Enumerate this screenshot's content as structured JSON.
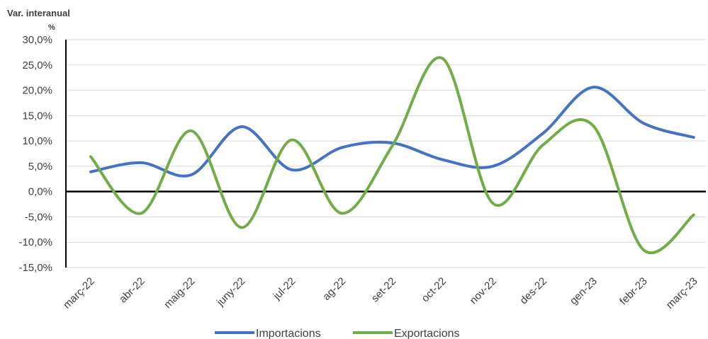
{
  "chart_data": {
    "type": "line",
    "ylabel": "Var. interanual",
    "yunit": "%",
    "categories": [
      "març-22",
      "abr-22",
      "maig-22",
      "juny-22",
      "jul-22",
      "ag-22",
      "set-22",
      "oct-22",
      "nov-22",
      "des-22",
      "gen-23",
      "febr-23",
      "març-23"
    ],
    "ylim": [
      -15,
      30
    ],
    "yticks": [
      -15,
      -10,
      -5,
      0,
      5,
      10,
      15,
      20,
      25,
      30
    ],
    "ytick_labels": [
      "-15,0%",
      "-10,0%",
      "-5,0%",
      "0,0%",
      "5,0%",
      "10,0%",
      "15,0%",
      "20,0%",
      "25,0%",
      "30,0%"
    ],
    "grid": true,
    "legend_position": "bottom",
    "series": [
      {
        "name": "Importacions",
        "color": "#4472C4",
        "values": [
          3.9,
          5.7,
          3.3,
          12.8,
          4.3,
          8.7,
          9.6,
          6.3,
          5.0,
          11.5,
          20.6,
          13.5,
          10.7
        ]
      },
      {
        "name": "Exportacions",
        "color": "#70AD47",
        "values": [
          6.9,
          -4.3,
          12.0,
          -7.1,
          10.2,
          -4.3,
          9.0,
          26.3,
          -2.3,
          9.2,
          13.0,
          -11.5,
          -4.6
        ]
      }
    ]
  }
}
